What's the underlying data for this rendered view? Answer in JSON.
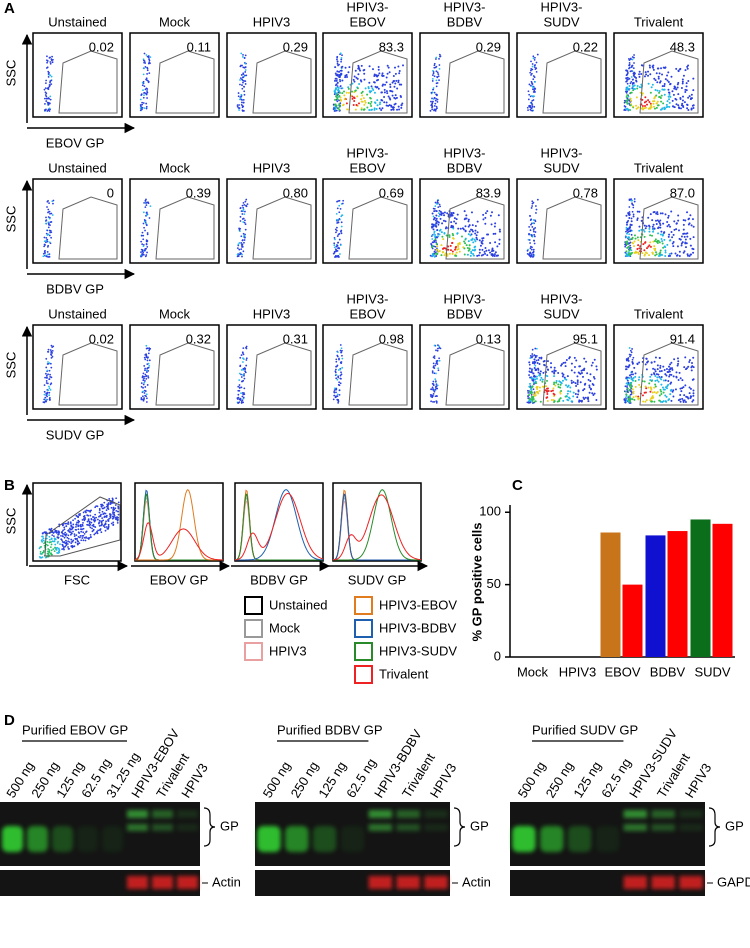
{
  "panels": {
    "A": {
      "label": "A",
      "y_axis": "SSC",
      "rows": [
        {
          "x_axis": "EBOV GP",
          "plots": [
            {
              "label": [
                "Unstained"
              ],
              "value": "0.02"
            },
            {
              "label": [
                "Mock"
              ],
              "value": "0.11"
            },
            {
              "label": [
                "HPIV3"
              ],
              "value": "0.29"
            },
            {
              "label": [
                "HPIV3-",
                "EBOV"
              ],
              "value": "83.3"
            },
            {
              "label": [
                "HPIV3-",
                "BDBV"
              ],
              "value": "0.29"
            },
            {
              "label": [
                "HPIV3-",
                "SUDV"
              ],
              "value": "0.22"
            },
            {
              "label": [
                "Trivalent"
              ],
              "value": "48.3"
            }
          ]
        },
        {
          "x_axis": "BDBV GP",
          "plots": [
            {
              "label": [
                "Unstained"
              ],
              "value": "0"
            },
            {
              "label": [
                "Mock"
              ],
              "value": "0.39"
            },
            {
              "label": [
                "HPIV3"
              ],
              "value": "0.80"
            },
            {
              "label": [
                "HPIV3-",
                "EBOV"
              ],
              "value": "0.69"
            },
            {
              "label": [
                "HPIV3-",
                "BDBV"
              ],
              "value": "83.9"
            },
            {
              "label": [
                "HPIV3-",
                "SUDV"
              ],
              "value": "0.78"
            },
            {
              "label": [
                "Trivalent"
              ],
              "value": "87.0"
            }
          ]
        },
        {
          "x_axis": "SUDV GP",
          "plots": [
            {
              "label": [
                "Unstained"
              ],
              "value": "0.02"
            },
            {
              "label": [
                "Mock"
              ],
              "value": "0.32"
            },
            {
              "label": [
                "HPIV3"
              ],
              "value": "0.31"
            },
            {
              "label": [
                "HPIV3-",
                "EBOV"
              ],
              "value": "0.98"
            },
            {
              "label": [
                "HPIV3-",
                "BDBV"
              ],
              "value": "0.13"
            },
            {
              "label": [
                "HPIV3-",
                "SUDV"
              ],
              "value": "95.1"
            },
            {
              "label": [
                "Trivalent"
              ],
              "value": "91.4"
            }
          ]
        }
      ]
    },
    "B": {
      "label": "B",
      "y_axis": "SSC",
      "x_axes": [
        "FSC",
        "EBOV GP",
        "BDBV GP",
        "SUDV GP"
      ],
      "legend": [
        {
          "name": "Unstained",
          "color": "#000000"
        },
        {
          "name": "Mock",
          "color": "#999999"
        },
        {
          "name": "HPIV3",
          "color": "#e8a0a0"
        },
        {
          "name": "HPIV3-EBOV",
          "color": "#e07b20"
        },
        {
          "name": "HPIV3-BDBV",
          "color": "#1f5fb0"
        },
        {
          "name": "HPIV3-SUDV",
          "color": "#2a8a2a"
        },
        {
          "name": "Trivalent",
          "color": "#ee2222"
        }
      ]
    },
    "C": {
      "label": "C"
    },
    "D": {
      "label": "D",
      "blots": [
        {
          "title": "Purified EBOV GP",
          "lanes": [
            "500 ng",
            "250 ng",
            "125 ng",
            "62.5 ng",
            "31.25 ng",
            "HPIV3-EBOV",
            "Trivalent",
            "HPIV3"
          ],
          "band_label": "GP",
          "control_label": "Actin"
        },
        {
          "title": "Purified BDBV GP",
          "lanes": [
            "500 ng",
            "250 ng",
            "125 ng",
            "62.5 ng",
            "HPIV3-BDBV",
            "Trivalent",
            "HPIV3"
          ],
          "band_label": "GP",
          "control_label": "Actin"
        },
        {
          "title": "Purified SUDV GP",
          "lanes": [
            "500 ng",
            "250 ng",
            "125 ng",
            "62.5 ng",
            "HPIV3-SUDV",
            "Trivalent",
            "HPIV3"
          ],
          "band_label": "GP",
          "control_label": "GAPDH"
        }
      ]
    }
  },
  "chart_data": {
    "type": "bar",
    "y_label": "% GP positive cells",
    "categories": [
      "Mock",
      "HPIV3",
      "EBOV",
      "BDBV",
      "SUDV"
    ],
    "series": [
      {
        "color": "#c8741a",
        "values": [
          null,
          null,
          86,
          null,
          null
        ]
      },
      {
        "color": "#ff0000",
        "values": [
          null,
          null,
          50,
          null,
          null
        ]
      },
      {
        "color": "#1010d0",
        "values": [
          null,
          null,
          null,
          84,
          null
        ]
      },
      {
        "color": "#ff0000",
        "values": [
          null,
          null,
          null,
          87,
          null
        ]
      },
      {
        "color": "#0a6e1a",
        "values": [
          null,
          null,
          null,
          null,
          95
        ]
      },
      {
        "color": "#ff0000",
        "values": [
          null,
          null,
          null,
          null,
          92
        ]
      }
    ],
    "ylim": [
      0,
      105
    ],
    "yticks": [
      0,
      50,
      100
    ]
  }
}
